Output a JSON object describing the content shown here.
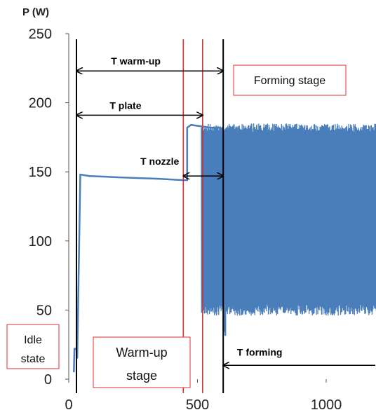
{
  "chart_data": {
    "type": "line",
    "title": "",
    "ylabel": "P (W)",
    "xlabel": "",
    "xlim": [
      0,
      1200
    ],
    "ylim": [
      0,
      250
    ],
    "x_ticks": [
      0,
      500,
      1000
    ],
    "x_tick_labels": [
      "0",
      "500",
      "1000"
    ],
    "y_ticks": [
      0,
      50,
      100,
      150,
      200,
      250
    ],
    "y_tick_labels": [
      "0",
      "50",
      "100",
      "150",
      "200",
      "250"
    ],
    "grid": false,
    "series_color": "#4a7ebb",
    "series": [
      {
        "points": [
          [
            20,
            5
          ],
          [
            22,
            22
          ],
          [
            30,
            22
          ],
          [
            33,
            15
          ],
          [
            45,
            148
          ],
          [
            80,
            147
          ],
          [
            200,
            146
          ],
          [
            350,
            145
          ],
          [
            440,
            144
          ],
          [
            460,
            144
          ],
          [
            460,
            182
          ],
          [
            475,
            184
          ],
          [
            550,
            182
          ],
          [
            590,
            182
          ]
        ],
        "oscillation": {
          "x_start": 515,
          "x_end": 1200,
          "low": 50,
          "high": 182,
          "dip_x": 605,
          "dip_low": 30
        }
      }
    ],
    "vertical_markers": [
      {
        "x": 30,
        "color": "#000000"
      },
      {
        "x": 445,
        "color": "#cc3333"
      },
      {
        "x": 520,
        "color": "#cc3333"
      },
      {
        "x": 600,
        "color": "#000000"
      }
    ],
    "annotations": [
      {
        "label": "T warm-up",
        "from_x": 30,
        "to_x": 600,
        "y": 223
      },
      {
        "label": "T plate",
        "from_x": 30,
        "to_x": 520,
        "y": 191
      },
      {
        "label": "T nozzle",
        "from_x": 445,
        "to_x": 600,
        "y": 147
      },
      {
        "label": "T forming",
        "from_x": 600,
        "to_x": 1200,
        "y": 10
      }
    ],
    "boxes": {
      "forming": "Forming stage",
      "warmup": "Warm-up stage",
      "idle": "Idle state",
      "border_color": "#e03030"
    }
  }
}
